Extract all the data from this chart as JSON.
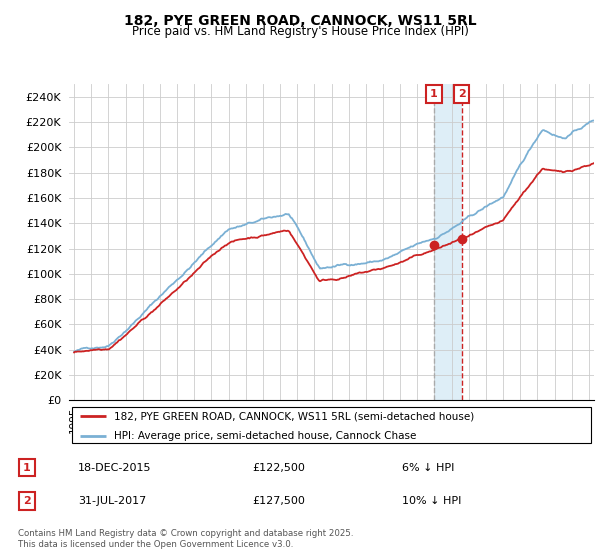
{
  "title": "182, PYE GREEN ROAD, CANNOCK, WS11 5RL",
  "subtitle": "Price paid vs. HM Land Registry's House Price Index (HPI)",
  "legend_line1": "182, PYE GREEN ROAD, CANNOCK, WS11 5RL (semi-detached house)",
  "legend_line2": "HPI: Average price, semi-detached house, Cannock Chase",
  "annotation1_date": "18-DEC-2015",
  "annotation1_price": "£122,500",
  "annotation1_hpi": "6% ↓ HPI",
  "annotation2_date": "31-JUL-2017",
  "annotation2_price": "£127,500",
  "annotation2_hpi": "10% ↓ HPI",
  "footer": "Contains HM Land Registry data © Crown copyright and database right 2025.\nThis data is licensed under the Open Government Licence v3.0.",
  "hpi_color": "#7ab0d4",
  "price_color": "#cc2222",
  "annotation_color": "#cc2222",
  "shade_color": "#d0e8f5",
  "vline1_color": "#aaaaaa",
  "vline2_color": "#cc2222",
  "ylim": [
    0,
    250000
  ],
  "yticks": [
    0,
    20000,
    40000,
    60000,
    80000,
    100000,
    120000,
    140000,
    160000,
    180000,
    200000,
    220000,
    240000
  ],
  "ytick_labels": [
    "£0",
    "£20K",
    "£40K",
    "£60K",
    "£80K",
    "£100K",
    "£120K",
    "£140K",
    "£160K",
    "£180K",
    "£200K",
    "£220K",
    "£240K"
  ],
  "sale1_x": 2015.96,
  "sale1_y": 122500,
  "sale2_x": 2017.58,
  "sale2_y": 127500,
  "xmin": 1995.0,
  "xmax": 2025.3
}
